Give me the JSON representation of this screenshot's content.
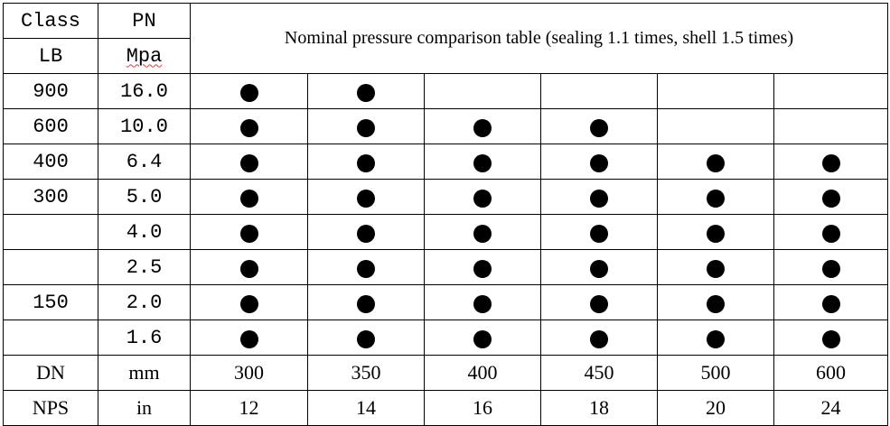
{
  "header": {
    "class_label": "Class",
    "lb_label": "LB",
    "pn_label": "PN",
    "mpa_label": "Mpa",
    "title": "Nominal pressure comparison table (sealing 1.1 times, shell 1.5 times)"
  },
  "rows": [
    {
      "lb": "900",
      "pn": "16.0",
      "marks": [
        true,
        true,
        false,
        false,
        false,
        false
      ]
    },
    {
      "lb": "600",
      "pn": "10.0",
      "marks": [
        true,
        true,
        true,
        true,
        false,
        false
      ]
    },
    {
      "lb": "400",
      "pn": "6.4",
      "marks": [
        true,
        true,
        true,
        true,
        true,
        true
      ]
    },
    {
      "lb": "300",
      "pn": "5.0",
      "marks": [
        true,
        true,
        true,
        true,
        true,
        true
      ]
    },
    {
      "lb": "",
      "pn": "4.0",
      "marks": [
        true,
        true,
        true,
        true,
        true,
        true
      ]
    },
    {
      "lb": "",
      "pn": "2.5",
      "marks": [
        true,
        true,
        true,
        true,
        true,
        true
      ]
    },
    {
      "lb": "150",
      "pn": "2.0",
      "marks": [
        true,
        true,
        true,
        true,
        true,
        true
      ]
    },
    {
      "lb": "",
      "pn": "1.6",
      "marks": [
        true,
        true,
        true,
        true,
        true,
        true
      ]
    }
  ],
  "dn_row": {
    "label": "DN",
    "unit": "mm",
    "values": [
      "300",
      "350",
      "400",
      "450",
      "500",
      "600"
    ]
  },
  "nps_row": {
    "label": "NPS",
    "unit": "in",
    "values": [
      "12",
      "14",
      "16",
      "18",
      "20",
      "24"
    ]
  },
  "mark_glyph": "filled-circle"
}
